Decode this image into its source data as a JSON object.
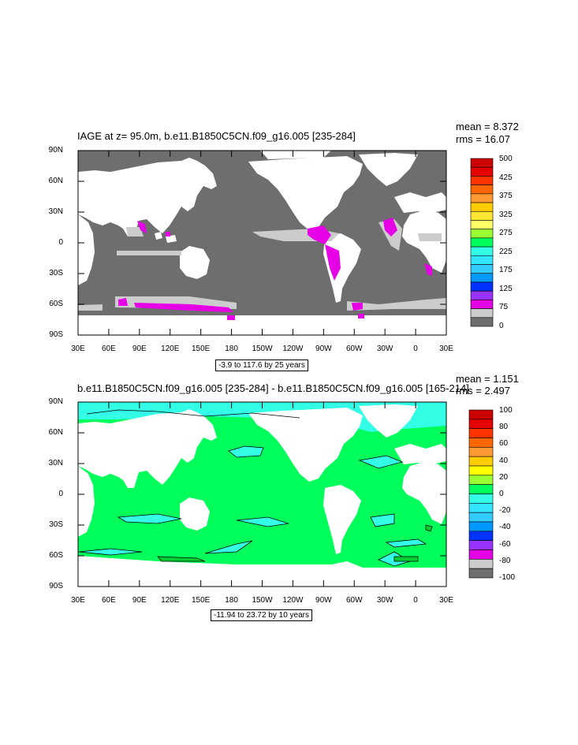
{
  "panel1": {
    "title": "IAGE at z=  95.0m, b.e11.B1850C5CN.f09_g16.005 [235-284]",
    "mean": "mean = 8.372",
    "rms": "rms = 16.07",
    "range_label": "-3.9 to 117.6 by 25 years",
    "colorbar_labels": [
      "500",
      "425",
      "375",
      "325",
      "275",
      "225",
      "175",
      "125",
      "75",
      "0"
    ]
  },
  "panel2": {
    "title": "b.e11.B1850C5CN.f09_g16.005 [235-284] - b.e11.B1850C5CN.f09_g16.005 [165-214]",
    "mean": "mean = 1.151",
    "rms": "rms = 2.497",
    "range_label": "-11.94 to 23.72 by 10 years",
    "colorbar_labels": [
      "100",
      "80",
      "60",
      "40",
      "20",
      "0",
      "-20",
      "-40",
      "-60",
      "-80",
      "-100"
    ]
  },
  "lat_labels": [
    "90N",
    "60N",
    "30N",
    "0",
    "30S",
    "60S",
    "90S"
  ],
  "lon_labels": [
    "30E",
    "60E",
    "90E",
    "120E",
    "150E",
    "180",
    "150W",
    "120W",
    "90W",
    "60W",
    "30W",
    "0",
    "30E"
  ],
  "colors": {
    "land": "#ffffff",
    "ocean_panel1": "#6e6e6e",
    "diff_main": "#00ff5a",
    "diff_negative": "#33ffe6",
    "highlight": "#e600e6"
  }
}
